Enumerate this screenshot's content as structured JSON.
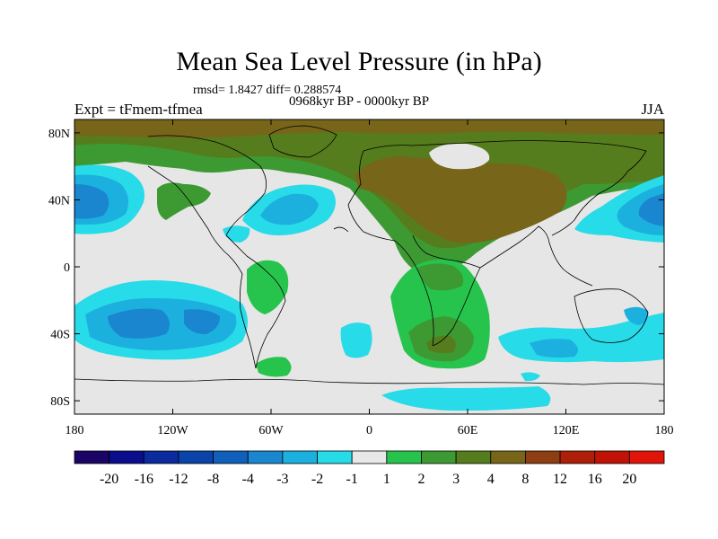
{
  "title": "Mean Sea Level Pressure (in hPa)",
  "stats_line": "rmsd= 1.8427 diff= 0.288574",
  "period": "0968kyr BP - 0000kyr BP",
  "experiment": "Expt = tFmem-tfmea",
  "season": "JJA",
  "lat_axis": {
    "labels": [
      "80N",
      "40N",
      "0",
      "40S",
      "80S"
    ],
    "values": [
      80,
      40,
      0,
      -40,
      -80
    ]
  },
  "lon_axis": {
    "labels": [
      "180",
      "120W",
      "60W",
      "0",
      "60E",
      "120E",
      "180"
    ],
    "values": [
      -180,
      -120,
      -60,
      0,
      60,
      120,
      180
    ]
  },
  "colorbar": {
    "labels": [
      "-20",
      "-16",
      "-12",
      "-8",
      "-4",
      "-3",
      "-2",
      "-1",
      "1",
      "2",
      "3",
      "4",
      "8",
      "12",
      "16",
      "20"
    ],
    "colors": [
      "#1a0566",
      "#0a0d8c",
      "#0a2a9e",
      "#0a44a8",
      "#0f5fbb",
      "#1a86cf",
      "#1cb0df",
      "#28dbe8",
      "#e8e8e8",
      "#27c44d",
      "#3d9a33",
      "#557d1d",
      "#77651a",
      "#8f3d12",
      "#ad1f08",
      "#c21105",
      "#e01409"
    ]
  }
}
